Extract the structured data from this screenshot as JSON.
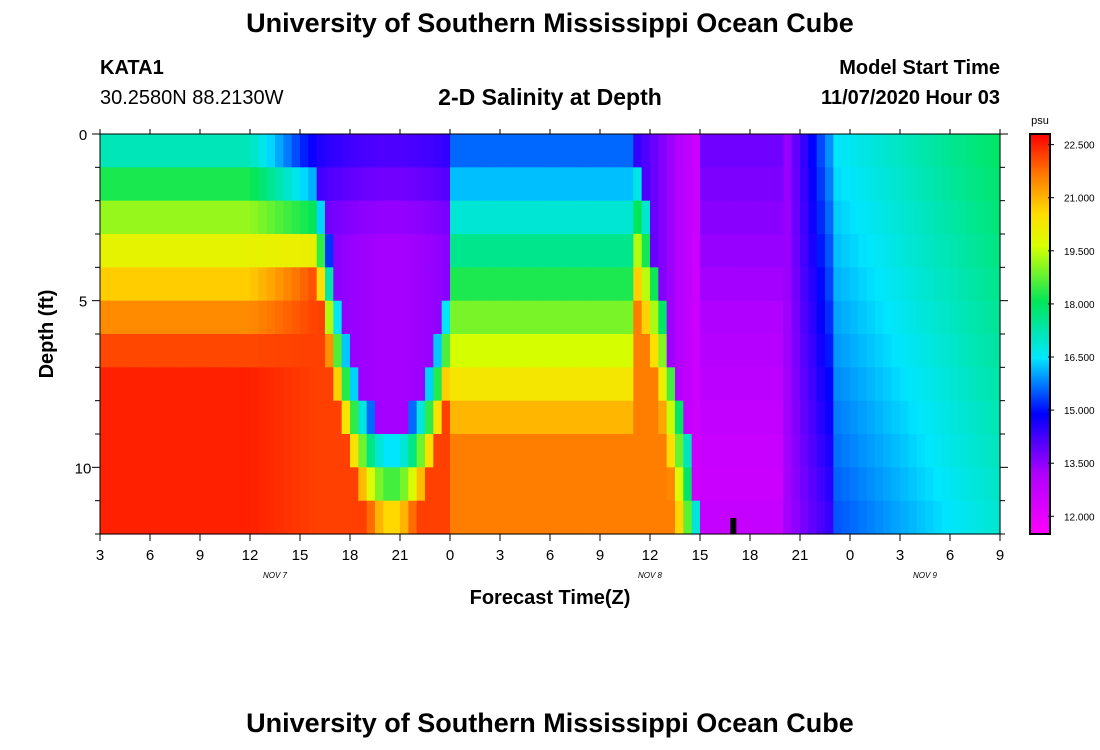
{
  "page": {
    "title": "University of Southern Mississippi Ocean Cube",
    "footer_title": "University of Southern Mississippi Ocean Cube",
    "station_id": "KATA1",
    "station_coords": "30.2580N 88.2130W",
    "subtitle": "2-D Salinity at Depth",
    "model_start_label": "Model Start Time",
    "model_start_value": "11/07/2020 Hour 03"
  },
  "chart_data": {
    "type": "heatmap",
    "title": "2-D Salinity at Depth",
    "xlabel": "Forecast Time(Z)",
    "ylabel": "Depth (ft)",
    "x_tick_labels": [
      "3",
      "6",
      "9",
      "12",
      "15",
      "18",
      "21",
      "0",
      "3",
      "6",
      "9",
      "12",
      "15",
      "18",
      "21",
      "0",
      "3",
      "6",
      "9"
    ],
    "x_tick_hours": [
      0,
      3,
      6,
      9,
      12,
      15,
      18,
      21,
      24,
      27,
      30,
      33,
      36,
      39,
      42,
      45,
      48,
      51,
      54
    ],
    "x_range_hours": [
      0,
      54
    ],
    "date_labels": [
      {
        "label": "NOV 7",
        "hour": 10.5
      },
      {
        "label": "NOV 8",
        "hour": 33
      },
      {
        "label": "NOV 9",
        "hour": 49.5
      }
    ],
    "y_tick_labels": [
      "0",
      "5",
      "10"
    ],
    "y_tick_values": [
      0,
      5,
      10
    ],
    "y_range_ft": [
      0,
      12
    ],
    "depth_layers": 12,
    "colorbar": {
      "unit": "psu",
      "min": 11.5,
      "max": 22.8,
      "tick_labels": [
        "22.500",
        "21.000",
        "19.500",
        "18.000",
        "16.500",
        "15.000",
        "13.500",
        "12.000"
      ],
      "tick_values": [
        22.5,
        21.0,
        19.5,
        18.0,
        16.5,
        15.0,
        13.5,
        12.0
      ]
    },
    "salinity_surface_psu": 16.3,
    "salinity_bottom_max_psu": 22.5,
    "salinity_min_psu": 11.8,
    "tide_marker_hour": 38
  }
}
